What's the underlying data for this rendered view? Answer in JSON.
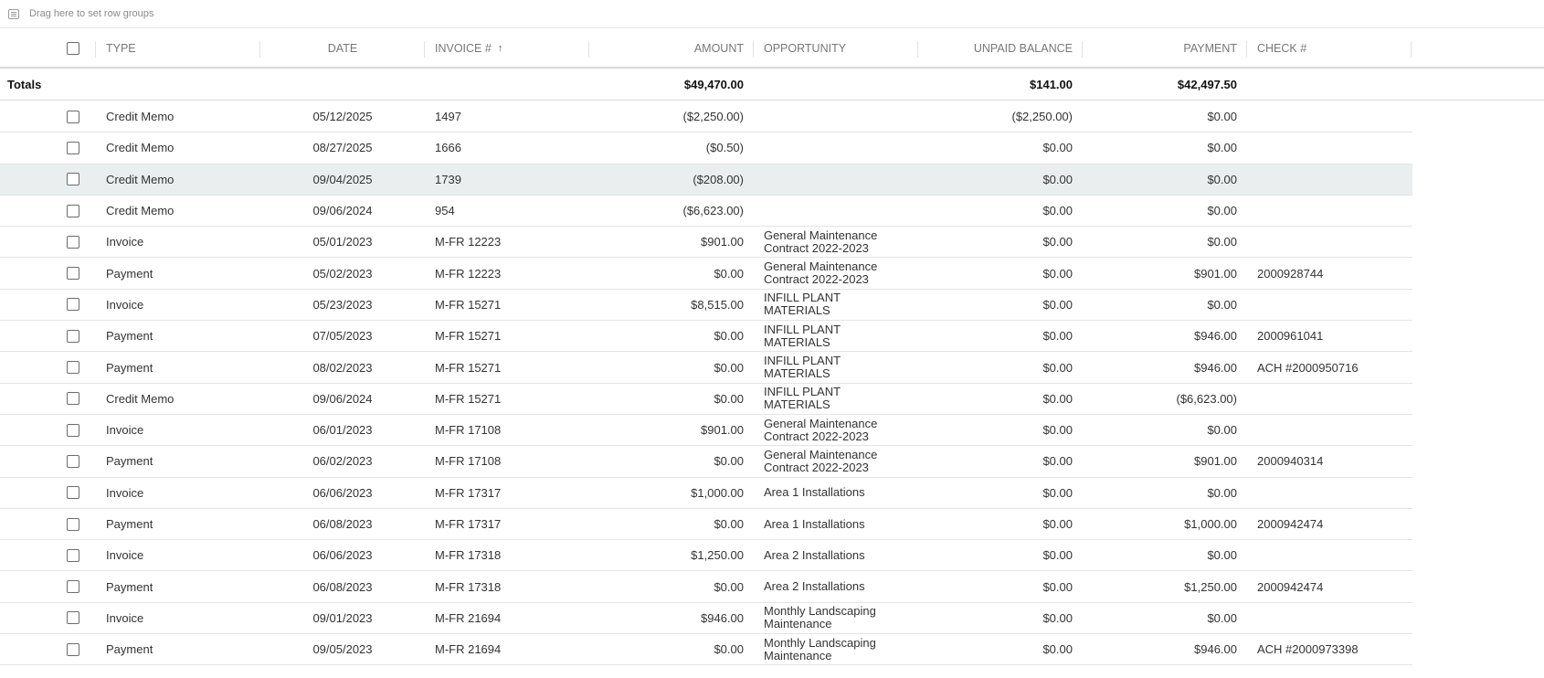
{
  "group_bar": {
    "text": "Drag here to set row groups",
    "icon": "row-group-icon"
  },
  "columns": {
    "type": "TYPE",
    "date": "DATE",
    "invoice": "INVOICE #",
    "invoice_sort": "↑",
    "amount": "AMOUNT",
    "opportunity": "OPPORTUNITY",
    "unpaid": "UNPAID BALANCE",
    "payment": "PAYMENT",
    "check": "CHECK #"
  },
  "totals": {
    "label": "Totals",
    "amount": "$49,470.00",
    "unpaid": "$141.00",
    "payment": "$42,497.50"
  },
  "rows": [
    {
      "type": "Credit Memo",
      "date": "05/12/2025",
      "invoice": "1497",
      "amount": "($2,250.00)",
      "opportunity": "",
      "unpaid": "($2,250.00)",
      "payment": "$0.00",
      "check": ""
    },
    {
      "type": "Credit Memo",
      "date": "08/27/2025",
      "invoice": "1666",
      "amount": "($0.50)",
      "opportunity": "",
      "unpaid": "$0.00",
      "payment": "$0.00",
      "check": ""
    },
    {
      "type": "Credit Memo",
      "date": "09/04/2025",
      "invoice": "1739",
      "amount": "($208.00)",
      "opportunity": "",
      "unpaid": "$0.00",
      "payment": "$0.00",
      "check": "",
      "highlight": true
    },
    {
      "type": "Credit Memo",
      "date": "09/06/2024",
      "invoice": "954",
      "amount": "($6,623.00)",
      "opportunity": "",
      "unpaid": "$0.00",
      "payment": "$0.00",
      "check": ""
    },
    {
      "type": "Invoice",
      "date": "05/01/2023",
      "invoice": "M-FR 12223",
      "amount": "$901.00",
      "opportunity": "General Maintenance Contract 2022-2023",
      "unpaid": "$0.00",
      "payment": "$0.00",
      "check": ""
    },
    {
      "type": "Payment",
      "date": "05/02/2023",
      "invoice": "M-FR 12223",
      "amount": "$0.00",
      "opportunity": "General Maintenance Contract 2022-2023",
      "unpaid": "$0.00",
      "payment": "$901.00",
      "check": "2000928744"
    },
    {
      "type": "Invoice",
      "date": "05/23/2023",
      "invoice": "M-FR 15271",
      "amount": "$8,515.00",
      "opportunity": "INFILL PLANT MATERIALS",
      "unpaid": "$0.00",
      "payment": "$0.00",
      "check": ""
    },
    {
      "type": "Payment",
      "date": "07/05/2023",
      "invoice": "M-FR 15271",
      "amount": "$0.00",
      "opportunity": "INFILL PLANT MATERIALS",
      "unpaid": "$0.00",
      "payment": "$946.00",
      "check": "2000961041"
    },
    {
      "type": "Payment",
      "date": "08/02/2023",
      "invoice": "M-FR 15271",
      "amount": "$0.00",
      "opportunity": "INFILL PLANT MATERIALS",
      "unpaid": "$0.00",
      "payment": "$946.00",
      "check": "ACH #2000950716"
    },
    {
      "type": "Credit Memo",
      "date": "09/06/2024",
      "invoice": "M-FR 15271",
      "amount": "$0.00",
      "opportunity": "INFILL PLANT MATERIALS",
      "unpaid": "$0.00",
      "payment": "($6,623.00)",
      "check": ""
    },
    {
      "type": "Invoice",
      "date": "06/01/2023",
      "invoice": "M-FR 17108",
      "amount": "$901.00",
      "opportunity": "General Maintenance Contract 2022-2023",
      "unpaid": "$0.00",
      "payment": "$0.00",
      "check": ""
    },
    {
      "type": "Payment",
      "date": "06/02/2023",
      "invoice": "M-FR 17108",
      "amount": "$0.00",
      "opportunity": "General Maintenance Contract 2022-2023",
      "unpaid": "$0.00",
      "payment": "$901.00",
      "check": "2000940314"
    },
    {
      "type": "Invoice",
      "date": "06/06/2023",
      "invoice": "M-FR 17317",
      "amount": "$1,000.00",
      "opportunity": "Area 1 Installations",
      "unpaid": "$0.00",
      "payment": "$0.00",
      "check": ""
    },
    {
      "type": "Payment",
      "date": "06/08/2023",
      "invoice": "M-FR 17317",
      "amount": "$0.00",
      "opportunity": "Area 1 Installations",
      "unpaid": "$0.00",
      "payment": "$1,000.00",
      "check": "2000942474"
    },
    {
      "type": "Invoice",
      "date": "06/06/2023",
      "invoice": "M-FR 17318",
      "amount": "$1,250.00",
      "opportunity": "Area 2 Installations",
      "unpaid": "$0.00",
      "payment": "$0.00",
      "check": ""
    },
    {
      "type": "Payment",
      "date": "06/08/2023",
      "invoice": "M-FR 17318",
      "amount": "$0.00",
      "opportunity": "Area 2 Installations",
      "unpaid": "$0.00",
      "payment": "$1,250.00",
      "check": "2000942474"
    },
    {
      "type": "Invoice",
      "date": "09/01/2023",
      "invoice": "M-FR 21694",
      "amount": "$946.00",
      "opportunity": "Monthly Landscaping Maintenance",
      "unpaid": "$0.00",
      "payment": "$0.00",
      "check": ""
    },
    {
      "type": "Payment",
      "date": "09/05/2023",
      "invoice": "M-FR 21694",
      "amount": "$0.00",
      "opportunity": "Monthly Landscaping Maintenance",
      "unpaid": "$0.00",
      "payment": "$946.00",
      "check": "ACH #2000973398"
    }
  ],
  "colors": {
    "highlight_row": "#eaeeee",
    "border": "#e4e4e4",
    "header_text": "#777777"
  }
}
